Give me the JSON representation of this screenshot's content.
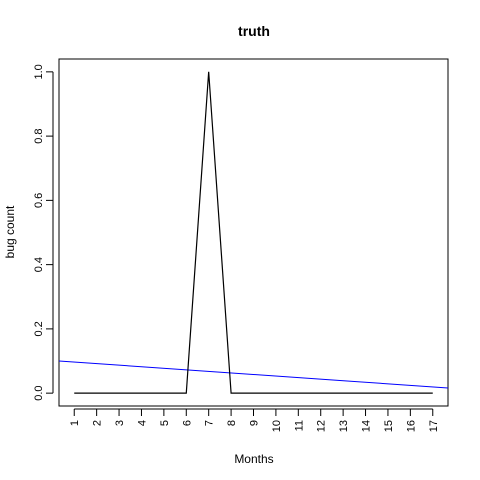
{
  "chart_data": {
    "type": "line",
    "title": "truth",
    "xlabel": "Months",
    "ylabel": "bug count",
    "x": [
      1,
      2,
      3,
      4,
      5,
      6,
      7,
      8,
      9,
      10,
      11,
      12,
      13,
      14,
      15,
      16,
      17
    ],
    "x_tick_labels": [
      "1",
      "2",
      "3",
      "4",
      "5",
      "6",
      "7",
      "8",
      "9",
      "10",
      "11",
      "12",
      "13",
      "14",
      "15",
      "16",
      "17"
    ],
    "y_ticks": [
      0.0,
      0.2,
      0.4,
      0.6,
      0.8,
      1.0
    ],
    "y_tick_labels": [
      "0.0",
      "0.2",
      "0.4",
      "0.6",
      "0.8",
      "1.0"
    ],
    "xlim": [
      0.32,
      17.68
    ],
    "ylim": [
      -0.04,
      1.04
    ],
    "grid": false,
    "series": [
      {
        "color": "#000000",
        "values": [
          0,
          0,
          0,
          0,
          0,
          0,
          1,
          0,
          0,
          0,
          0,
          0,
          0,
          0,
          0,
          0,
          0
        ]
      }
    ],
    "trend_line": {
      "color": "#0000ff",
      "x": [
        0.32,
        17.68
      ],
      "y": [
        0.1,
        0.016
      ]
    }
  }
}
